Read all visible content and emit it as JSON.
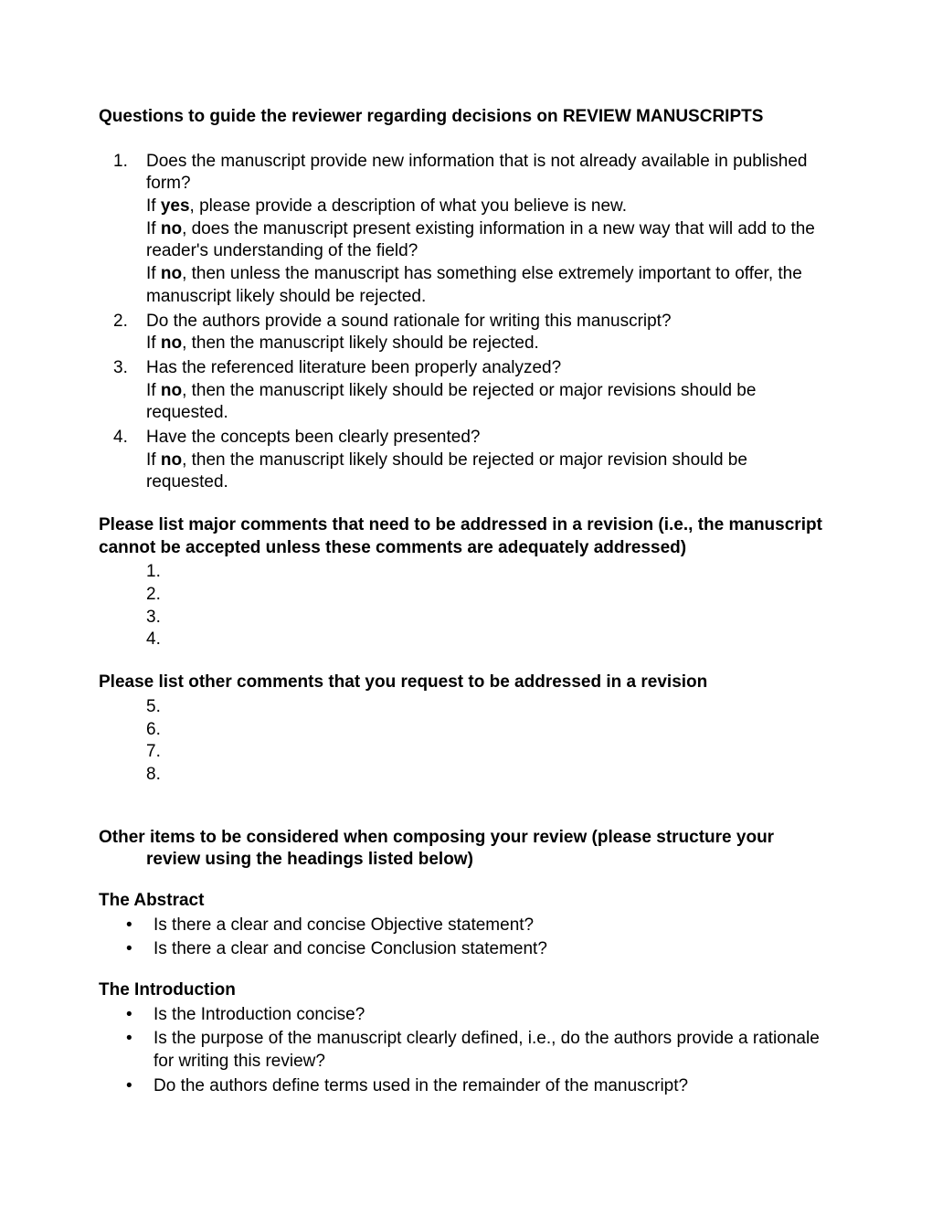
{
  "title": "Questions to guide the reviewer regarding decisions on REVIEW MANUSCRIPTS",
  "questions": [
    {
      "num": "1.",
      "text": "Does the manuscript provide new information that is not already available in published form?",
      "subs": [
        {
          "prefix": "If ",
          "bold": "yes",
          "suffix": ", please provide a description of what you believe is new."
        },
        {
          "prefix": "If ",
          "bold": "no",
          "suffix": ", does the manuscript present existing information in a new way that will add to the reader's understanding of the field?"
        },
        {
          "prefix": "If ",
          "bold": "no",
          "suffix": ", then unless the manuscript has something else extremely important to offer, the manuscript likely should be rejected."
        }
      ]
    },
    {
      "num": "2.",
      "text": "Do the authors provide a sound rationale for writing this manuscript?",
      "subs": [
        {
          "prefix": "If ",
          "bold": "no",
          "suffix": ", then the manuscript likely should be rejected."
        }
      ]
    },
    {
      "num": "3.",
      "text": "Has the referenced literature been properly analyzed?",
      "subs": [
        {
          "prefix": "If ",
          "bold": "no",
          "suffix": ", then the manuscript likely should be rejected or major revisions should be requested."
        }
      ]
    },
    {
      "num": "4.",
      "text": "Have the concepts been clearly presented?",
      "subs": [
        {
          "prefix": "If ",
          "bold": "no",
          "suffix": ", then the manuscript likely should be rejected or major revision should be requested."
        }
      ]
    }
  ],
  "majorCommentsHeader": "Please list major comments that need to be addressed in a revision (i.e., the manuscript cannot be accepted unless these comments are adequately addressed)",
  "majorNumbers": [
    "1.",
    "2.",
    "3.",
    "4."
  ],
  "otherCommentsHeader": "Please list other comments that you request to be addressed in a revision",
  "otherNumbers": [
    "5.",
    "6.",
    "7.",
    "8."
  ],
  "otherItemsLine1": "Other items to be considered when composing your review (please structure your",
  "otherItemsLine2": "review using the headings listed below)",
  "sections": [
    {
      "title": "The Abstract",
      "bullets": [
        "Is there a clear and concise Objective statement?",
        "Is there a clear and concise Conclusion statement?"
      ]
    },
    {
      "title": "The Introduction",
      "bullets": [
        "Is the Introduction concise?",
        "Is the purpose of the manuscript clearly defined, i.e., do the authors provide a rationale for writing this review?",
        "Do the authors define terms used in the remainder of the manuscript?"
      ]
    }
  ]
}
